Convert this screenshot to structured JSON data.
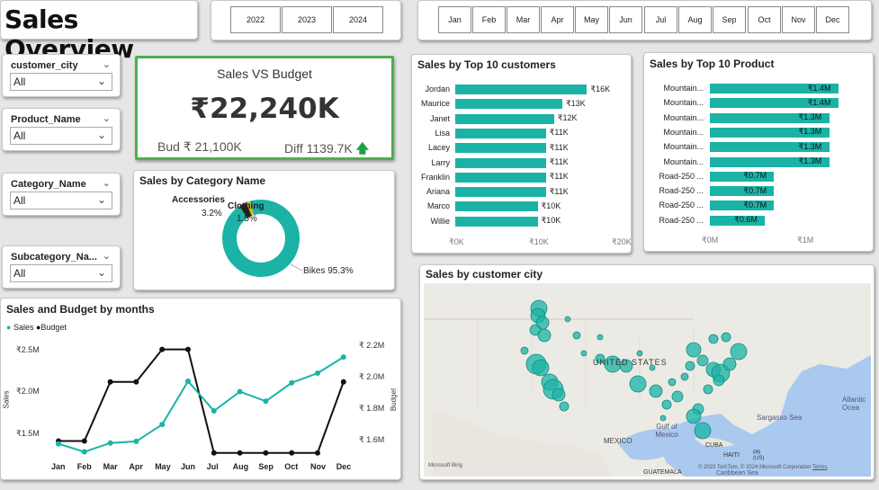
{
  "title": "Sales Overview",
  "years": [
    "2022",
    "2023",
    "2024"
  ],
  "months": [
    "Jan",
    "Feb",
    "Mar",
    "Apr",
    "May",
    "Jun",
    "Jul",
    "Aug",
    "Sep",
    "Oct",
    "Nov",
    "Dec"
  ],
  "filters": [
    {
      "label": "customer_city",
      "value": "All"
    },
    {
      "label": "Product_Name",
      "value": "All"
    },
    {
      "label": "Category_Name",
      "value": "All"
    },
    {
      "label": "Subcategory_Na...",
      "value": "All"
    }
  ],
  "kpi": {
    "heading": "Sales VS Budget",
    "value": "₹22,240K",
    "budget": "Bud ₹ 21,100K",
    "diff": "Diff 1139.7K",
    "diff_arrow": "🡅"
  },
  "category_chart": {
    "title": "Sales by Category Name",
    "labels": [
      {
        "name": "Accessories",
        "pct": "3.2%"
      },
      {
        "name": "Clothing",
        "pct": "1.5%"
      },
      {
        "name": "Bikes",
        "pct": "95.3%"
      }
    ],
    "bikes_label": "Bikes 95.3%"
  },
  "customers_chart": {
    "title": "Sales by Top 10 customers",
    "axis": [
      "₹0K",
      "₹10K",
      "₹20K"
    ]
  },
  "products_chart": {
    "title": "Sales by Top 10 Product",
    "axis": [
      "₹0M",
      "₹1M"
    ]
  },
  "months_chart": {
    "title": "Sales and Budget by months",
    "legend_sales": "Sales",
    "legend_budget": "Budget",
    "y_left_title": "Sales",
    "y_right_title": "Budget",
    "y_left_ticks": [
      "₹2.5M",
      "₹2.0M",
      "₹1.5M"
    ],
    "y_right_ticks": [
      "₹ 2.2M",
      "₹ 2.0M",
      "₹ 1.8M",
      "₹ 1.6M"
    ]
  },
  "map": {
    "title": "Sales by customer city",
    "labels": {
      "us": "UNITED STATES",
      "mexico": "MEXICO",
      "gulf": "Gulf of Mexico",
      "sargasso": "Sargasso Sea",
      "atlantic": "Atlantic Ocea",
      "cuba": "CUBA",
      "haiti": "HAITI",
      "pr": "PR (US)",
      "guatemala": "GUATEMALA",
      "caribbean": "Caribbean Sea"
    },
    "attribution": "© 2023 TomTom, © 2024 Microsoft Corporation",
    "terms": "Terms",
    "bing": "Microsoft Bing"
  },
  "chart_data": [
    {
      "type": "bar",
      "title": "Sales by Top 10 customers",
      "categories": [
        "Jordan",
        "Maurice",
        "Janet",
        "Lisa",
        "Lacey",
        "Larry",
        "Franklin",
        "Ariana",
        "Marco",
        "Willie"
      ],
      "values": [
        16,
        13,
        12,
        11,
        11,
        11,
        11,
        11,
        10,
        10
      ],
      "value_labels": [
        "₹16K",
        "₹13K",
        "₹12K",
        "₹11K",
        "₹11K",
        "₹11K",
        "₹11K",
        "₹11K",
        "₹10K",
        "₹10K"
      ],
      "xlim": [
        0,
        20
      ]
    },
    {
      "type": "bar",
      "title": "Sales by Top 10 Product",
      "categories": [
        "Mountain...",
        "Mountain...",
        "Mountain...",
        "Mountain...",
        "Mountain...",
        "Mountain...",
        "Road-250 ...",
        "Road-250 ...",
        "Road-250 ...",
        "Road-250 ..."
      ],
      "values": [
        1.4,
        1.4,
        1.3,
        1.3,
        1.3,
        1.3,
        0.7,
        0.7,
        0.7,
        0.6
      ],
      "value_labels": [
        "₹1.4M",
        "₹1.4M",
        "₹1.3M",
        "₹1.3M",
        "₹1.3M",
        "₹1.3M",
        "₹0.7M",
        "₹0.7M",
        "₹0.7M",
        "₹0.6M"
      ],
      "xlim": [
        0,
        1.55
      ]
    },
    {
      "type": "pie",
      "title": "Sales by Category Name",
      "categories": [
        "Bikes",
        "Accessories",
        "Clothing"
      ],
      "values": [
        95.3,
        3.2,
        1.5
      ],
      "colors": [
        "#1ab3a6",
        "#222222",
        "#e3b60f"
      ]
    },
    {
      "type": "line",
      "title": "Sales and Budget by months",
      "categories": [
        "Jan",
        "Feb",
        "Mar",
        "Apr",
        "May",
        "Jun",
        "Jul",
        "Aug",
        "Sep",
        "Oct",
        "Nov",
        "Dec"
      ],
      "series": [
        {
          "name": "Sales",
          "axis": "left",
          "unit": "M",
          "values": [
            1.4,
            1.3,
            1.41,
            1.43,
            1.64,
            2.18,
            1.81,
            2.05,
            1.93,
            2.16,
            2.28,
            2.48
          ],
          "color": "#1ab3a6"
        },
        {
          "name": "Budget",
          "axis": "right",
          "unit": "M",
          "values": [
            1.6,
            1.6,
            2.0,
            2.0,
            2.22,
            2.22,
            1.52,
            1.52,
            1.52,
            1.52,
            1.52,
            2.0
          ],
          "color": "#111111"
        }
      ],
      "ylim_left": [
        1.25,
        2.65
      ],
      "ylim_right": [
        1.5,
        2.26
      ]
    }
  ]
}
